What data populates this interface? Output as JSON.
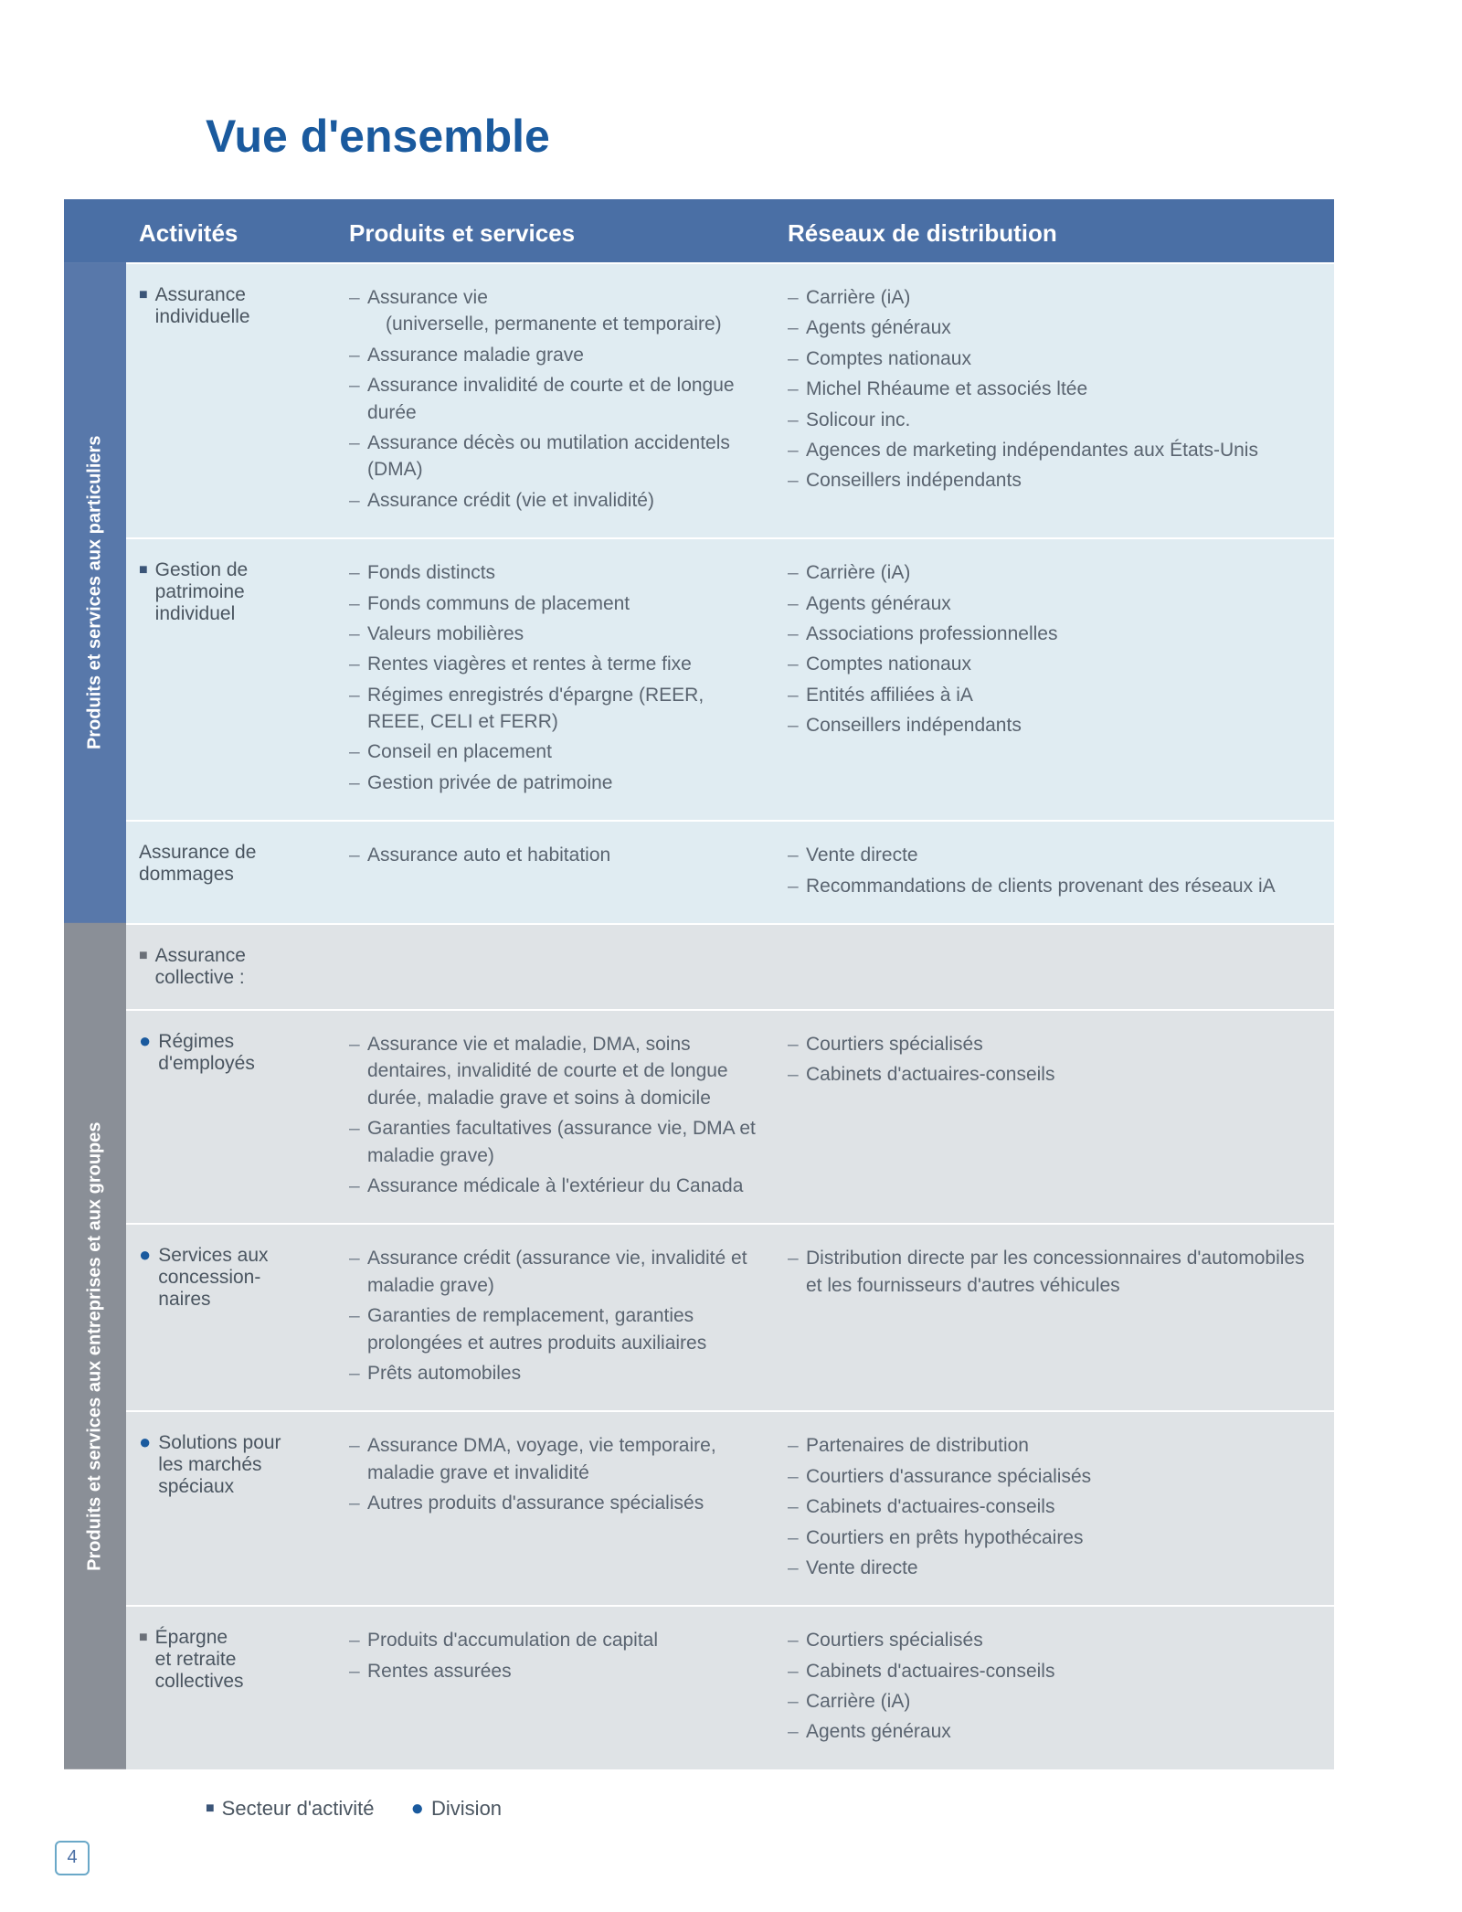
{
  "colors": {
    "title": "#1a5a9e",
    "header_bg": "#4a6fa5",
    "header_text": "#ffffff",
    "side_blue": "#5878aa",
    "side_gray": "#8a8f97",
    "row_light": "#e0ecf2",
    "row_gray": "#dfe3e6",
    "body_text": "#4a5560",
    "list_text": "#5a6470",
    "square_marker": "#3b5578",
    "bullet_marker": "#1a5a9e",
    "pagenum_border": "#6aa8c8"
  },
  "page": {
    "title": "Vue d'ensemble",
    "page_number": "4"
  },
  "headers": {
    "activity": "Activités",
    "products": "Produits et services",
    "distribution": "Réseaux de distribution"
  },
  "sections": [
    {
      "side_label": "Produits et services aux particuliers",
      "side_color": "blue",
      "rows": [
        {
          "row_color": "light",
          "activity": {
            "marker": "square",
            "lines": [
              "Assurance",
              "individuelle"
            ]
          },
          "products": [
            "Assurance vie",
            "(universelle, permanente et temporaire)",
            "Assurance maladie grave",
            "Assurance invalidité de courte et de longue durée",
            "Assurance décès ou mutilation accidentels (DMA)",
            "Assurance crédit (vie et invalidité)"
          ],
          "product_subindex": [
            1
          ],
          "distribution": [
            "Carrière (iA)",
            "Agents généraux",
            "Comptes nationaux",
            "Michel Rhéaume et associés ltée",
            "Solicour inc.",
            "Agences de marketing indépendantes aux États-Unis",
            "Conseillers indépendants"
          ]
        },
        {
          "row_color": "light",
          "activity": {
            "marker": "square",
            "lines": [
              "Gestion de",
              "patrimoine",
              "individuel"
            ]
          },
          "products": [
            "Fonds distincts",
            "Fonds communs de placement",
            "Valeurs mobilières",
            "Rentes viagères et rentes à terme fixe",
            "Régimes enregistrés d'épargne (REER, REEE, CELI et FERR)",
            "Conseil en placement",
            "Gestion privée de patrimoine"
          ],
          "distribution": [
            "Carrière (iA)",
            "Agents généraux",
            "Associations professionnelles",
            "Comptes nationaux",
            "Entités affiliées à iA",
            "Conseillers indépendants"
          ]
        },
        {
          "row_color": "light",
          "activity": {
            "marker": "none",
            "lines": [
              "Assurance de",
              "dommages"
            ]
          },
          "products": [
            "Assurance auto et habitation"
          ],
          "distribution": [
            "Vente directe",
            "Recommandations de clients provenant des réseaux iA"
          ]
        }
      ]
    },
    {
      "side_label": "Produits et services aux entreprises et aux groupes",
      "side_color": "gray",
      "rows": [
        {
          "row_color": "gray",
          "activity": {
            "marker": "square-gray",
            "lines": [
              "Assurance collective :"
            ]
          },
          "products": [],
          "distribution": []
        },
        {
          "row_color": "gray",
          "activity": {
            "marker": "bullet",
            "lines": [
              "Régimes",
              "d'employés"
            ]
          },
          "products": [
            "Assurance vie et maladie, DMA, soins dentaires, invalidité de courte et de longue durée, maladie grave et soins à domicile",
            "Garanties facultatives (assurance vie, DMA et maladie grave)",
            "Assurance médicale à l'extérieur du Canada"
          ],
          "distribution": [
            "Courtiers spécialisés",
            "Cabinets d'actuaires-conseils"
          ]
        },
        {
          "row_color": "gray",
          "activity": {
            "marker": "bullet",
            "lines": [
              "Services aux",
              "concession-",
              "naires"
            ]
          },
          "products": [
            "Assurance crédit (assurance vie, invalidité et maladie grave)",
            "Garanties de remplacement, garanties prolongées et autres produits auxiliaires",
            "Prêts automobiles"
          ],
          "distribution": [
            "Distribution directe par les concessionnaires d'automobiles et les fournisseurs d'autres véhicules"
          ]
        },
        {
          "row_color": "gray",
          "activity": {
            "marker": "bullet",
            "lines": [
              "Solutions pour",
              "les marchés",
              "spéciaux"
            ]
          },
          "products": [
            "Assurance DMA, voyage, vie temporaire, maladie grave et invalidité",
            "Autres produits d'assurance spécialisés"
          ],
          "distribution": [
            "Partenaires de distribution",
            "Courtiers d'assurance spécialisés",
            "Cabinets d'actuaires-conseils",
            "Courtiers en prêts hypothécaires",
            "Vente directe"
          ]
        },
        {
          "row_color": "gray",
          "activity": {
            "marker": "square-gray",
            "lines": [
              "Épargne",
              "et retraite",
              "collectives"
            ]
          },
          "products": [
            "Produits d'accumulation de capital",
            "Rentes assurées"
          ],
          "distribution": [
            "Courtiers spécialisés",
            "Cabinets d'actuaires-conseils",
            "Carrière (iA)",
            "Agents généraux"
          ]
        }
      ]
    }
  ],
  "legend": {
    "square": "Secteur d'activité",
    "bullet": "Division"
  }
}
